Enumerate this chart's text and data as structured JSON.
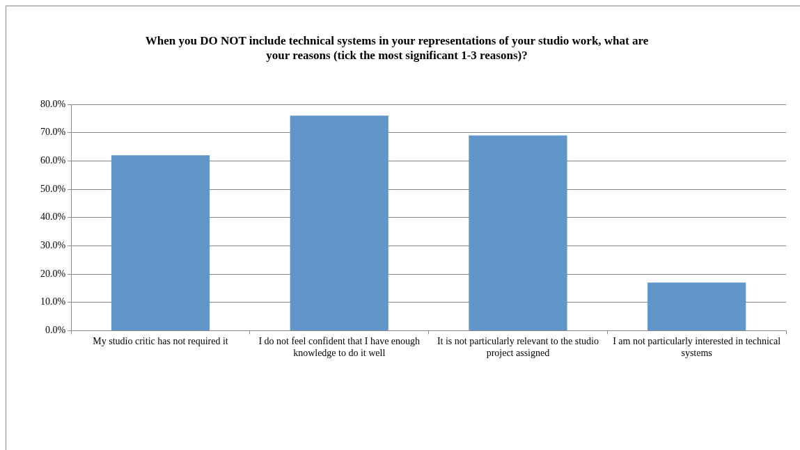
{
  "chart_data": {
    "type": "bar",
    "title": "When you DO NOT include technical systems in your representations of your studio work, what are your reasons (tick the most significant 1-3 reasons)?",
    "categories": [
      "My studio critic has not required it",
      "I do not feel confident that I have enough knowledge to do it well",
      "It is not particularly relevant to the studio project assigned",
      "I am not particularly interested in technical systems"
    ],
    "values": [
      62,
      76,
      69,
      17
    ],
    "color": "#6096c9",
    "ylim": [
      0,
      80
    ],
    "yticks": [
      {
        "value": 0,
        "label": "0.0%"
      },
      {
        "value": 10,
        "label": "10.0%"
      },
      {
        "value": 20,
        "label": "20.0%"
      },
      {
        "value": 30,
        "label": "30.0%"
      },
      {
        "value": 40,
        "label": "40.0%"
      },
      {
        "value": 50,
        "label": "50.0%"
      },
      {
        "value": 60,
        "label": "60.0%"
      },
      {
        "value": 70,
        "label": "70.0%"
      },
      {
        "value": 80,
        "label": "80.0%"
      }
    ],
    "grid": "y"
  }
}
